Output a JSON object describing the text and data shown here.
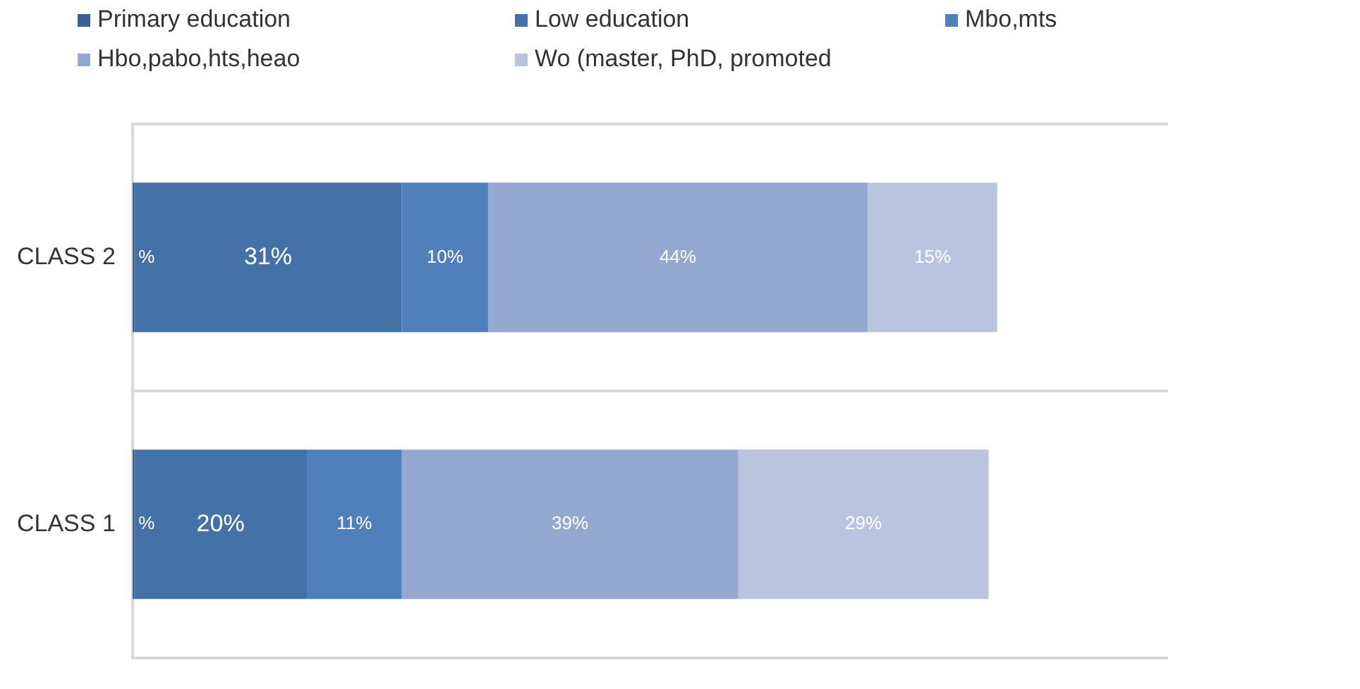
{
  "chart_data": {
    "type": "bar",
    "orientation": "horizontal",
    "stacked": true,
    "categories": [
      "CLASS 2",
      "CLASS 1"
    ],
    "series": [
      {
        "name": "Primary education",
        "color": "#3b5f91",
        "values": [
          0.2,
          0.2
        ],
        "value_labels": [
          "%",
          "%"
        ]
      },
      {
        "name": "Low education",
        "color": "#4472a6",
        "values": [
          31,
          20
        ],
        "value_labels": [
          "31%",
          "20%"
        ]
      },
      {
        "name": "Mbo,mts",
        "color": "#4f80bb",
        "values": [
          10,
          11
        ],
        "value_labels": [
          "10%",
          "11%"
        ]
      },
      {
        "name": "Hbo,pabo,hts,heao",
        "color": "#95a9d0",
        "values": [
          44,
          39
        ],
        "value_labels": [
          "44%",
          "39%"
        ]
      },
      {
        "name": "Wo (master, PhD, promoted",
        "color": "#b9c5df",
        "values": [
          15,
          29
        ],
        "value_labels": [
          "15%",
          "29%"
        ]
      }
    ],
    "grid": "y",
    "legend": "top"
  }
}
